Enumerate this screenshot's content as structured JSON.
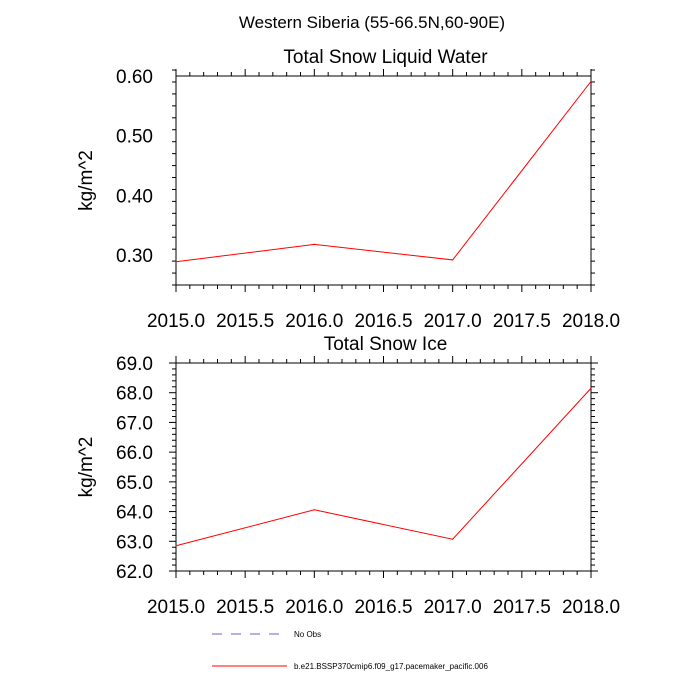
{
  "figure": {
    "title": "Western Siberia (55-66.5N,60-90E)"
  },
  "chart_data": [
    {
      "type": "line",
      "title": "Total Snow Liquid Water",
      "xlabel": "",
      "ylabel": "kg/m^2",
      "xlim": [
        2015.0,
        2018.0
      ],
      "ylim": [
        0.25,
        0.6
      ],
      "xticks": [
        2015.0,
        2015.5,
        2016.0,
        2016.5,
        2017.0,
        2017.5,
        2018.0
      ],
      "xtick_labels": [
        "2015.0",
        "2015.5",
        "2016.0",
        "2016.5",
        "2017.0",
        "2017.5",
        "2018.0"
      ],
      "yticks": [
        0.3,
        0.4,
        0.5,
        0.6
      ],
      "ytick_labels": [
        "0.30",
        "0.40",
        "0.50",
        "0.60"
      ],
      "series": [
        {
          "name": "b.e21.BSSP370cmip6.f09_g17.pacemaker_pacific.006",
          "color": "#ff0000",
          "x": [
            2015.0,
            2016.0,
            2017.0,
            2018.0
          ],
          "values": [
            0.289,
            0.318,
            0.292,
            0.591
          ]
        }
      ]
    },
    {
      "type": "line",
      "title": "Total Snow Ice",
      "xlabel": "",
      "ylabel": "kg/m^2",
      "xlim": [
        2015.0,
        2018.0
      ],
      "ylim": [
        62.0,
        69.0
      ],
      "xticks": [
        2015.0,
        2015.5,
        2016.0,
        2016.5,
        2017.0,
        2017.5,
        2018.0
      ],
      "xtick_labels": [
        "2015.0",
        "2015.5",
        "2016.0",
        "2016.5",
        "2017.0",
        "2017.5",
        "2018.0"
      ],
      "yticks": [
        62.0,
        63.0,
        64.0,
        65.0,
        66.0,
        67.0,
        68.0,
        69.0
      ],
      "ytick_labels": [
        "62.0",
        "63.0",
        "64.0",
        "65.0",
        "66.0",
        "67.0",
        "68.0",
        "69.0"
      ],
      "series": [
        {
          "name": "b.e21.BSSP370cmip6.f09_g17.pacemaker_pacific.006",
          "color": "#ff0000",
          "x": [
            2015.0,
            2016.0,
            2017.0,
            2018.0
          ],
          "values": [
            62.85,
            64.06,
            63.07,
            68.15
          ]
        }
      ]
    }
  ],
  "legend": {
    "items": [
      {
        "label": "No Obs",
        "color": "#6666cc",
        "style": "dashed"
      },
      {
        "label": "b.e21.BSSP370cmip6.f09_g17.pacemaker_pacific.006",
        "color": "#ff0000",
        "style": "solid"
      }
    ]
  }
}
